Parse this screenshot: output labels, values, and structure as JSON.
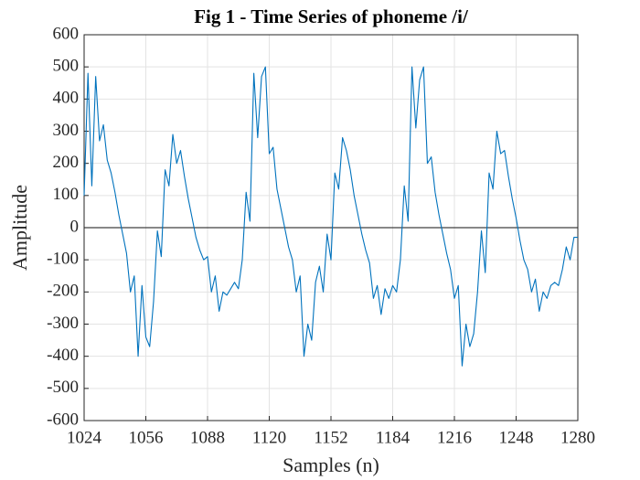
{
  "chart_data": {
    "type": "line",
    "title": "Fig 1 - Time Series of phoneme /i/",
    "xlabel": "Samples (n)",
    "ylabel": "Amplitude",
    "x": [
      1024,
      1026,
      1028,
      1030,
      1032,
      1034,
      1036,
      1038,
      1040,
      1042,
      1044,
      1046,
      1048,
      1050,
      1052,
      1054,
      1056,
      1058,
      1060,
      1062,
      1064,
      1066,
      1068,
      1070,
      1072,
      1074,
      1076,
      1078,
      1080,
      1082,
      1084,
      1086,
      1088,
      1090,
      1092,
      1094,
      1096,
      1098,
      1100,
      1102,
      1104,
      1106,
      1108,
      1110,
      1112,
      1114,
      1116,
      1118,
      1120,
      1122,
      1124,
      1126,
      1128,
      1130,
      1132,
      1134,
      1136,
      1138,
      1140,
      1142,
      1144,
      1146,
      1148,
      1150,
      1152,
      1154,
      1156,
      1158,
      1160,
      1162,
      1164,
      1166,
      1168,
      1170,
      1172,
      1174,
      1176,
      1178,
      1180,
      1182,
      1184,
      1186,
      1188,
      1190,
      1192,
      1194,
      1196,
      1198,
      1200,
      1202,
      1204,
      1206,
      1208,
      1210,
      1212,
      1214,
      1216,
      1218,
      1220,
      1222,
      1224,
      1226,
      1228,
      1230,
      1232,
      1234,
      1236,
      1238,
      1240,
      1242,
      1244,
      1246,
      1248,
      1250,
      1252,
      1254,
      1256,
      1258,
      1260,
      1262,
      1264,
      1266,
      1268,
      1270,
      1272,
      1274,
      1276,
      1278,
      1280
    ],
    "series": [
      {
        "color": "#0072BD",
        "values": [
          100,
          480,
          130,
          470,
          270,
          320,
          210,
          170,
          110,
          40,
          -20,
          -80,
          -200,
          -150,
          -400,
          -180,
          -340,
          -370,
          -230,
          -10,
          -90,
          180,
          130,
          290,
          200,
          240,
          160,
          90,
          30,
          -30,
          -70,
          -100,
          -90,
          -200,
          -150,
          -260,
          -200,
          -210,
          -190,
          -170,
          -190,
          -100,
          110,
          20,
          480,
          280,
          470,
          500,
          230,
          250,
          120,
          60,
          0,
          -60,
          -100,
          -200,
          -150,
          -400,
          -300,
          -350,
          -170,
          -120,
          -200,
          -20,
          -100,
          170,
          120,
          280,
          240,
          180,
          100,
          40,
          -20,
          -70,
          -110,
          -220,
          -180,
          -270,
          -190,
          -220,
          -180,
          -200,
          -100,
          130,
          20,
          500,
          310,
          460,
          500,
          200,
          220,
          110,
          40,
          -20,
          -80,
          -130,
          -220,
          -180,
          -430,
          -300,
          -370,
          -330,
          -200,
          -10,
          -140,
          170,
          120,
          300,
          230,
          240,
          160,
          90,
          30,
          -40,
          -100,
          -130,
          -200,
          -160,
          -260,
          -200,
          -220,
          -180,
          -170,
          -180,
          -130,
          -60,
          -100,
          -30,
          -30
        ]
      }
    ],
    "xlim": [
      1024,
      1280
    ],
    "xticks": [
      1024,
      1056,
      1088,
      1120,
      1152,
      1184,
      1216,
      1248,
      1280
    ],
    "ylim": [
      -600,
      600
    ],
    "yticks": [
      -600,
      -500,
      -400,
      -300,
      -200,
      -100,
      0,
      100,
      200,
      300,
      400,
      500,
      600
    ],
    "grid": true
  }
}
